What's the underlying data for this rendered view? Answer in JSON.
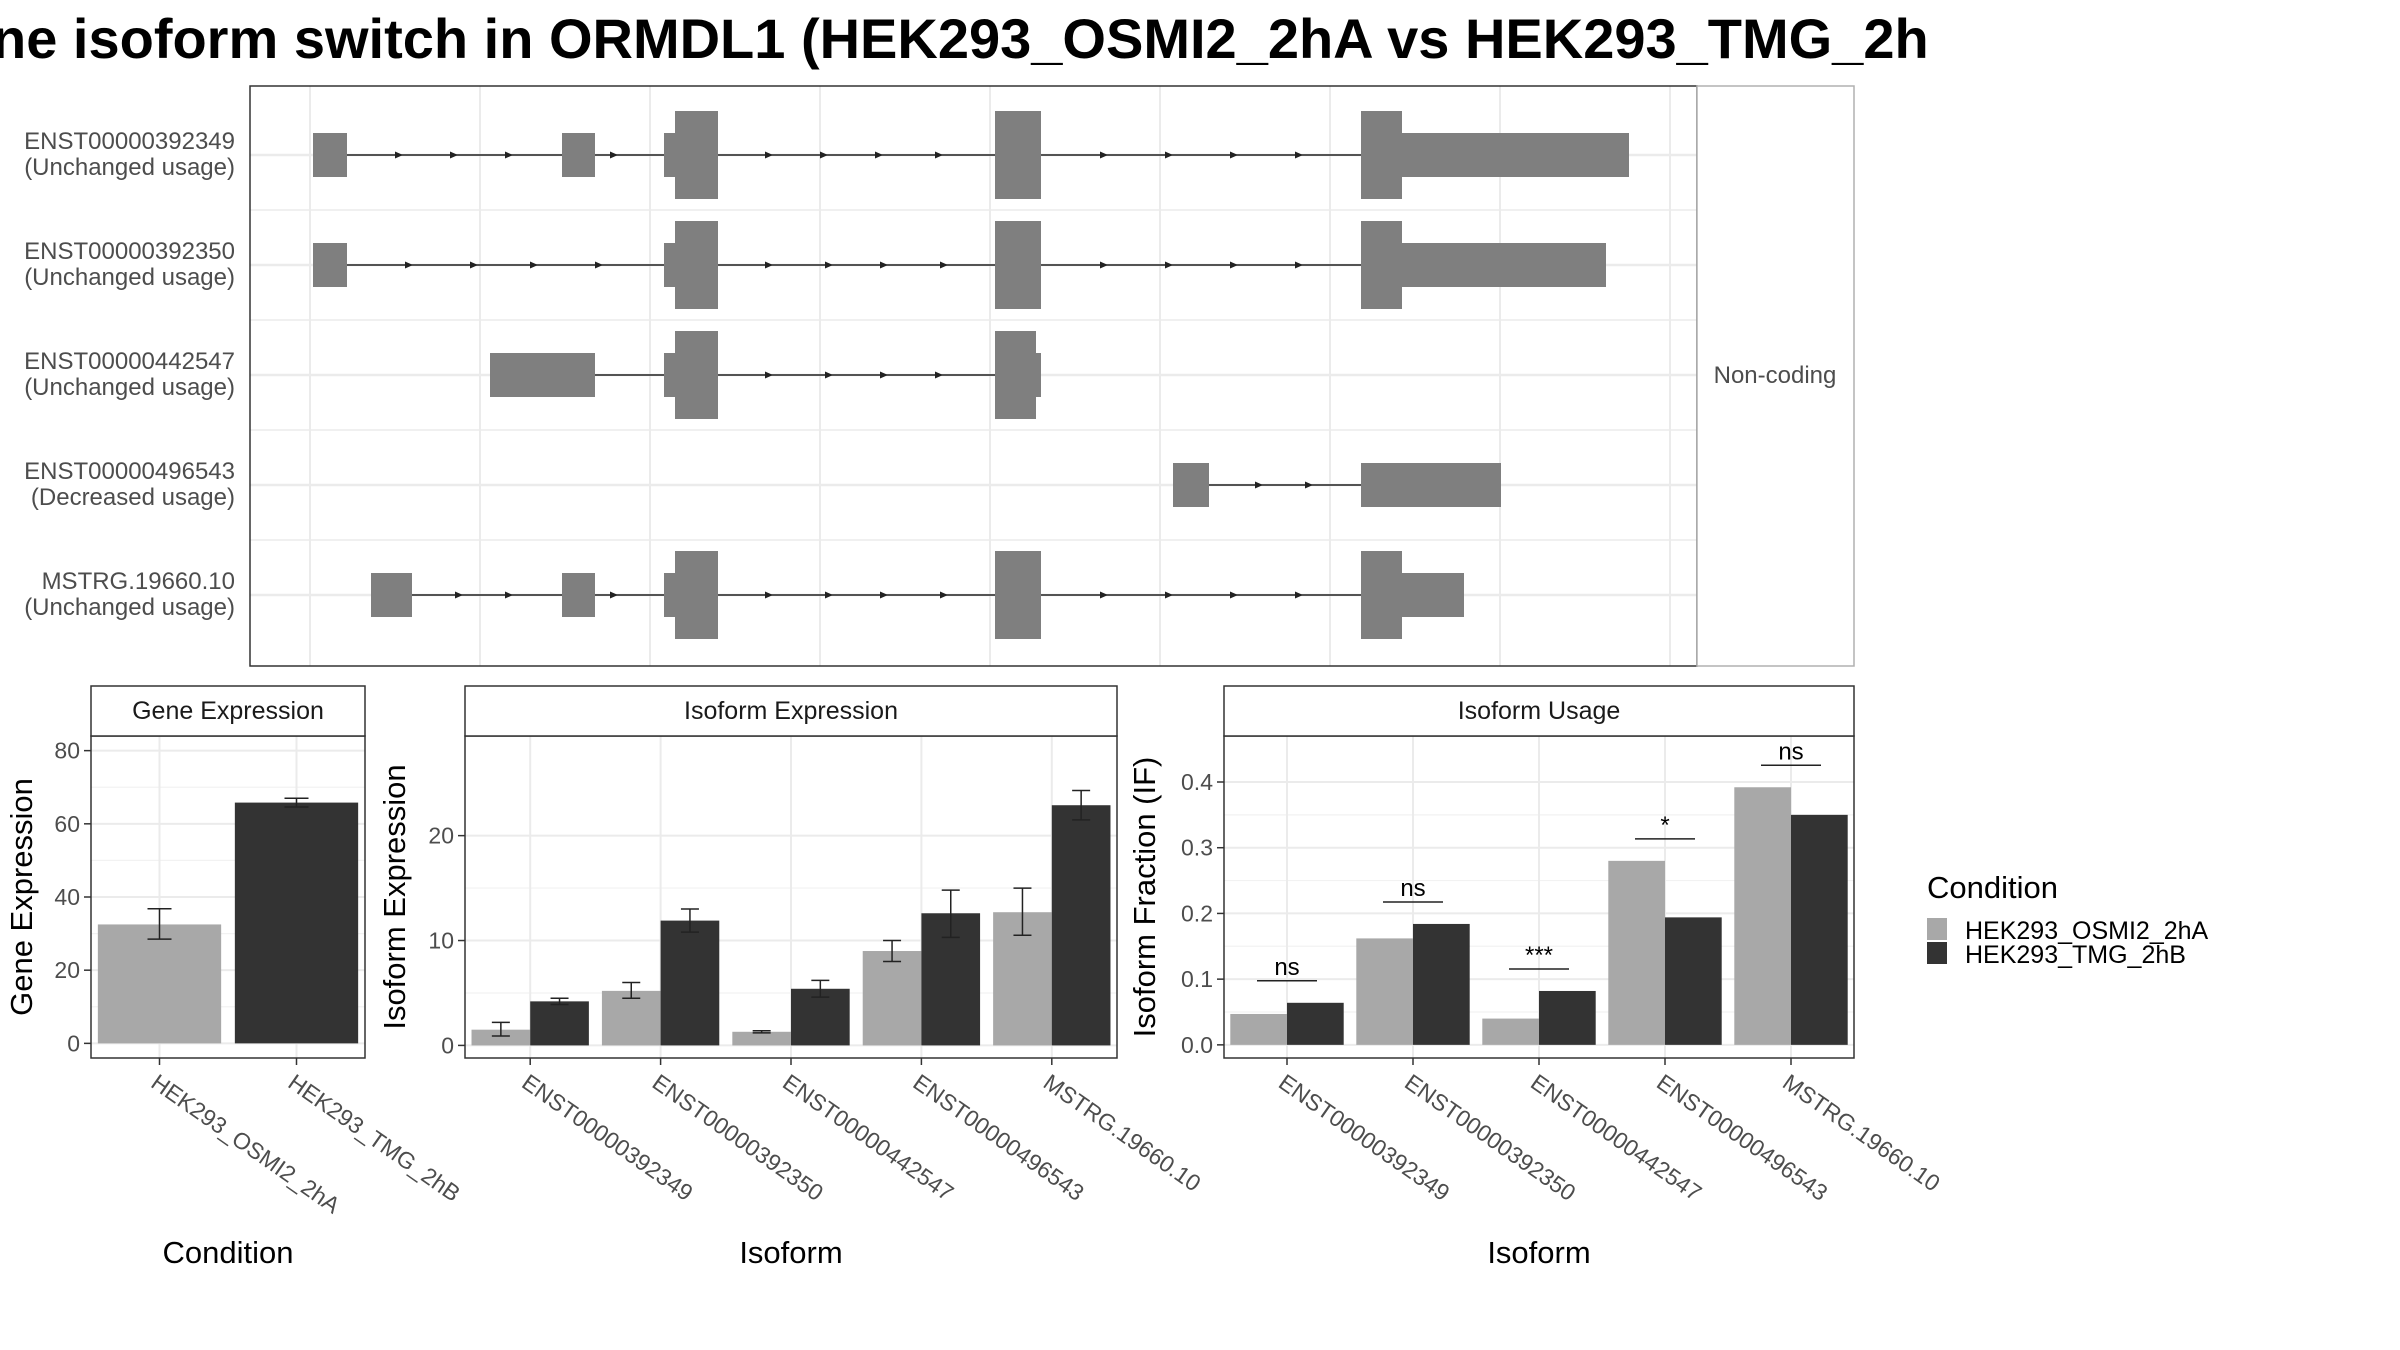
{
  "title": "ne isoform switch in ORMDL1 (HEK293_OSMI2_2hA vs HEK293_TMG_2h",
  "colors": {
    "cond1": "#a8a8a8",
    "cond2": "#333333",
    "exon": "#7f7f7f"
  },
  "chart_data": [
    {
      "type": "gene-structure",
      "facet_label": "Non-coding",
      "transcripts": [
        {
          "id": "ENST00000392349",
          "status": "(Unchanged usage)"
        },
        {
          "id": "ENST00000392350",
          "status": "(Unchanged usage)"
        },
        {
          "id": "ENST00000442547",
          "status": "(Unchanged usage)"
        },
        {
          "id": "ENST00000496543",
          "status": "(Decreased usage)"
        },
        {
          "id": "MSTRG.19660.10",
          "status": "(Unchanged usage)"
        }
      ]
    },
    {
      "type": "bar",
      "title": "Gene Expression",
      "xlabel": "Condition",
      "ylabel": "Gene Expression",
      "ylim": [
        -4,
        84
      ],
      "yticks": [
        0,
        20,
        40,
        60,
        80
      ],
      "categories": [
        "HEK293_OSMI2_2hA",
        "HEK293_TMG_2hB"
      ],
      "values": [
        32.5,
        65.8
      ],
      "errors": [
        [
          28.5,
          36.8
        ],
        [
          64.6,
          67.0
        ]
      ]
    },
    {
      "type": "bar",
      "title": "Isoform Expression",
      "xlabel": "Isoform",
      "ylabel": "Isoform Expression",
      "ylim": [
        -1.2,
        29.5
      ],
      "yticks": [
        0,
        10,
        20
      ],
      "categories": [
        "ENST00000392349",
        "ENST00000392350",
        "ENST00000442547",
        "ENST00000496543",
        "MSTRG.19660.10"
      ],
      "series": [
        {
          "name": "HEK293_OSMI2_2hA",
          "values": [
            1.5,
            5.2,
            1.3,
            9.0,
            12.7
          ],
          "errors": [
            [
              0.9,
              2.2
            ],
            [
              4.5,
              6.0
            ],
            [
              1.2,
              1.4
            ],
            [
              8.0,
              10.0
            ],
            [
              10.5,
              15.0
            ]
          ]
        },
        {
          "name": "HEK293_TMG_2hB",
          "values": [
            4.2,
            11.9,
            5.4,
            12.6,
            22.9
          ],
          "errors": [
            [
              3.9,
              4.5
            ],
            [
              10.8,
              13.0
            ],
            [
              4.6,
              6.2
            ],
            [
              10.3,
              14.8
            ],
            [
              21.5,
              24.3
            ]
          ]
        }
      ]
    },
    {
      "type": "bar",
      "title": "Isoform Usage",
      "xlabel": "Isoform",
      "ylabel": "Isoform Fraction (IF)",
      "ylim": [
        -0.02,
        0.47
      ],
      "yticks": [
        "0.0",
        "0.1",
        "0.2",
        "0.3",
        "0.4"
      ],
      "categories": [
        "ENST00000392349",
        "ENST00000392350",
        "ENST00000442547",
        "ENST00000496543",
        "MSTRG.19660.10"
      ],
      "series": [
        {
          "name": "HEK293_OSMI2_2hA",
          "values": [
            0.047,
            0.162,
            0.04,
            0.28,
            0.392
          ]
        },
        {
          "name": "HEK293_TMG_2hB",
          "values": [
            0.064,
            0.184,
            0.082,
            0.194,
            0.35
          ]
        }
      ],
      "significance": [
        "ns",
        "ns",
        "***",
        "*",
        "ns"
      ]
    }
  ],
  "legend": {
    "title": "Condition",
    "entries": [
      "HEK293_OSMI2_2hA",
      "HEK293_TMG_2hB"
    ]
  }
}
